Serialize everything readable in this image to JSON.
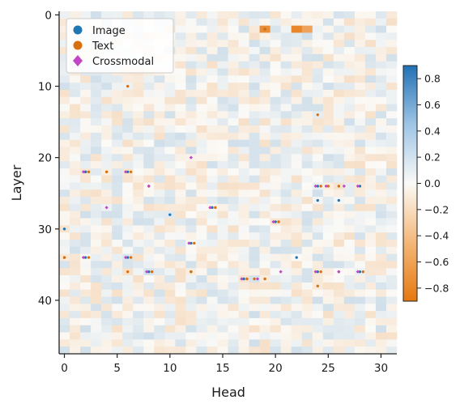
{
  "chart_data": {
    "type": "heatmap",
    "title": "",
    "xlabel": "Head",
    "ylabel": "Layer",
    "n_heads": 32,
    "n_layers": 48,
    "xticks": [
      0,
      5,
      10,
      15,
      20,
      25,
      30
    ],
    "yticks": [
      0,
      10,
      20,
      30,
      40
    ],
    "colorbar": {
      "min": -0.9,
      "max": 0.9,
      "ticks": [
        0.8,
        0.6,
        0.4,
        0.2,
        0.0,
        -0.2,
        -0.4,
        -0.6,
        -0.8
      ],
      "tick_labels": [
        "0.8",
        "0.6",
        "0.4",
        "0.2",
        "0.0",
        "−0.2",
        "−0.4",
        "−0.6",
        "−0.8"
      ],
      "positive_color": "#2171b5",
      "negative_color": "#e6780f"
    },
    "legend": {
      "position": "top-left",
      "entries": [
        {
          "label": "Image",
          "marker": "circle",
          "color": "#1f77b4"
        },
        {
          "label": "Text",
          "marker": "circle",
          "color": "#d9700f"
        },
        {
          "label": "Crossmodal",
          "marker": "diamond",
          "color": "#c146c6"
        }
      ]
    },
    "cells_description": "faint mostly near-zero values across all heads and layers",
    "strong_cells": [
      {
        "head": 19,
        "layer": 2,
        "value": -0.75
      },
      {
        "head": 22,
        "layer": 2,
        "value": -0.8
      },
      {
        "head": 23,
        "layer": 2,
        "value": -0.6
      }
    ],
    "markers": {
      "image": [
        [
          19,
          2
        ],
        [
          2,
          22
        ],
        [
          6,
          22
        ],
        [
          24,
          24
        ],
        [
          28,
          24
        ],
        [
          14,
          27
        ],
        [
          20,
          29
        ],
        [
          10,
          28
        ],
        [
          0,
          30
        ],
        [
          12,
          32
        ],
        [
          0,
          34
        ],
        [
          2,
          34
        ],
        [
          6,
          34
        ],
        [
          22,
          34
        ],
        [
          8,
          36
        ],
        [
          12,
          36
        ],
        [
          24,
          36
        ],
        [
          28,
          36
        ],
        [
          17,
          37
        ],
        [
          24,
          26
        ],
        [
          26,
          26
        ],
        [
          2,
          22
        ]
      ],
      "text": [
        [
          19,
          2
        ],
        [
          6,
          10
        ],
        [
          24,
          14
        ],
        [
          2.3,
          22
        ],
        [
          6.3,
          22
        ],
        [
          4,
          22
        ],
        [
          24.3,
          24
        ],
        [
          25,
          24
        ],
        [
          26,
          24
        ],
        [
          8,
          24
        ],
        [
          14.3,
          27
        ],
        [
          20.3,
          29
        ],
        [
          12.3,
          32
        ],
        [
          0,
          34
        ],
        [
          2.3,
          34
        ],
        [
          6.3,
          34
        ],
        [
          6,
          36
        ],
        [
          8.3,
          36
        ],
        [
          12,
          36
        ],
        [
          24.3,
          36
        ],
        [
          26,
          36
        ],
        [
          28.3,
          36
        ],
        [
          17.3,
          37
        ],
        [
          18,
          37
        ],
        [
          19,
          37
        ],
        [
          24,
          38
        ]
      ],
      "crossmodal": [
        [
          12,
          20
        ],
        [
          1.8,
          22
        ],
        [
          5.8,
          22
        ],
        [
          8,
          24
        ],
        [
          23.8,
          24
        ],
        [
          24.8,
          24
        ],
        [
          26.5,
          24
        ],
        [
          27.8,
          24
        ],
        [
          4,
          27
        ],
        [
          13.8,
          27
        ],
        [
          19.8,
          29
        ],
        [
          11.8,
          32
        ],
        [
          1.8,
          34
        ],
        [
          5.8,
          34
        ],
        [
          7.8,
          36
        ],
        [
          23.8,
          36
        ],
        [
          26,
          36
        ],
        [
          27.8,
          36
        ],
        [
          16.8,
          37
        ],
        [
          18.3,
          37
        ],
        [
          20.5,
          36
        ]
      ]
    }
  }
}
